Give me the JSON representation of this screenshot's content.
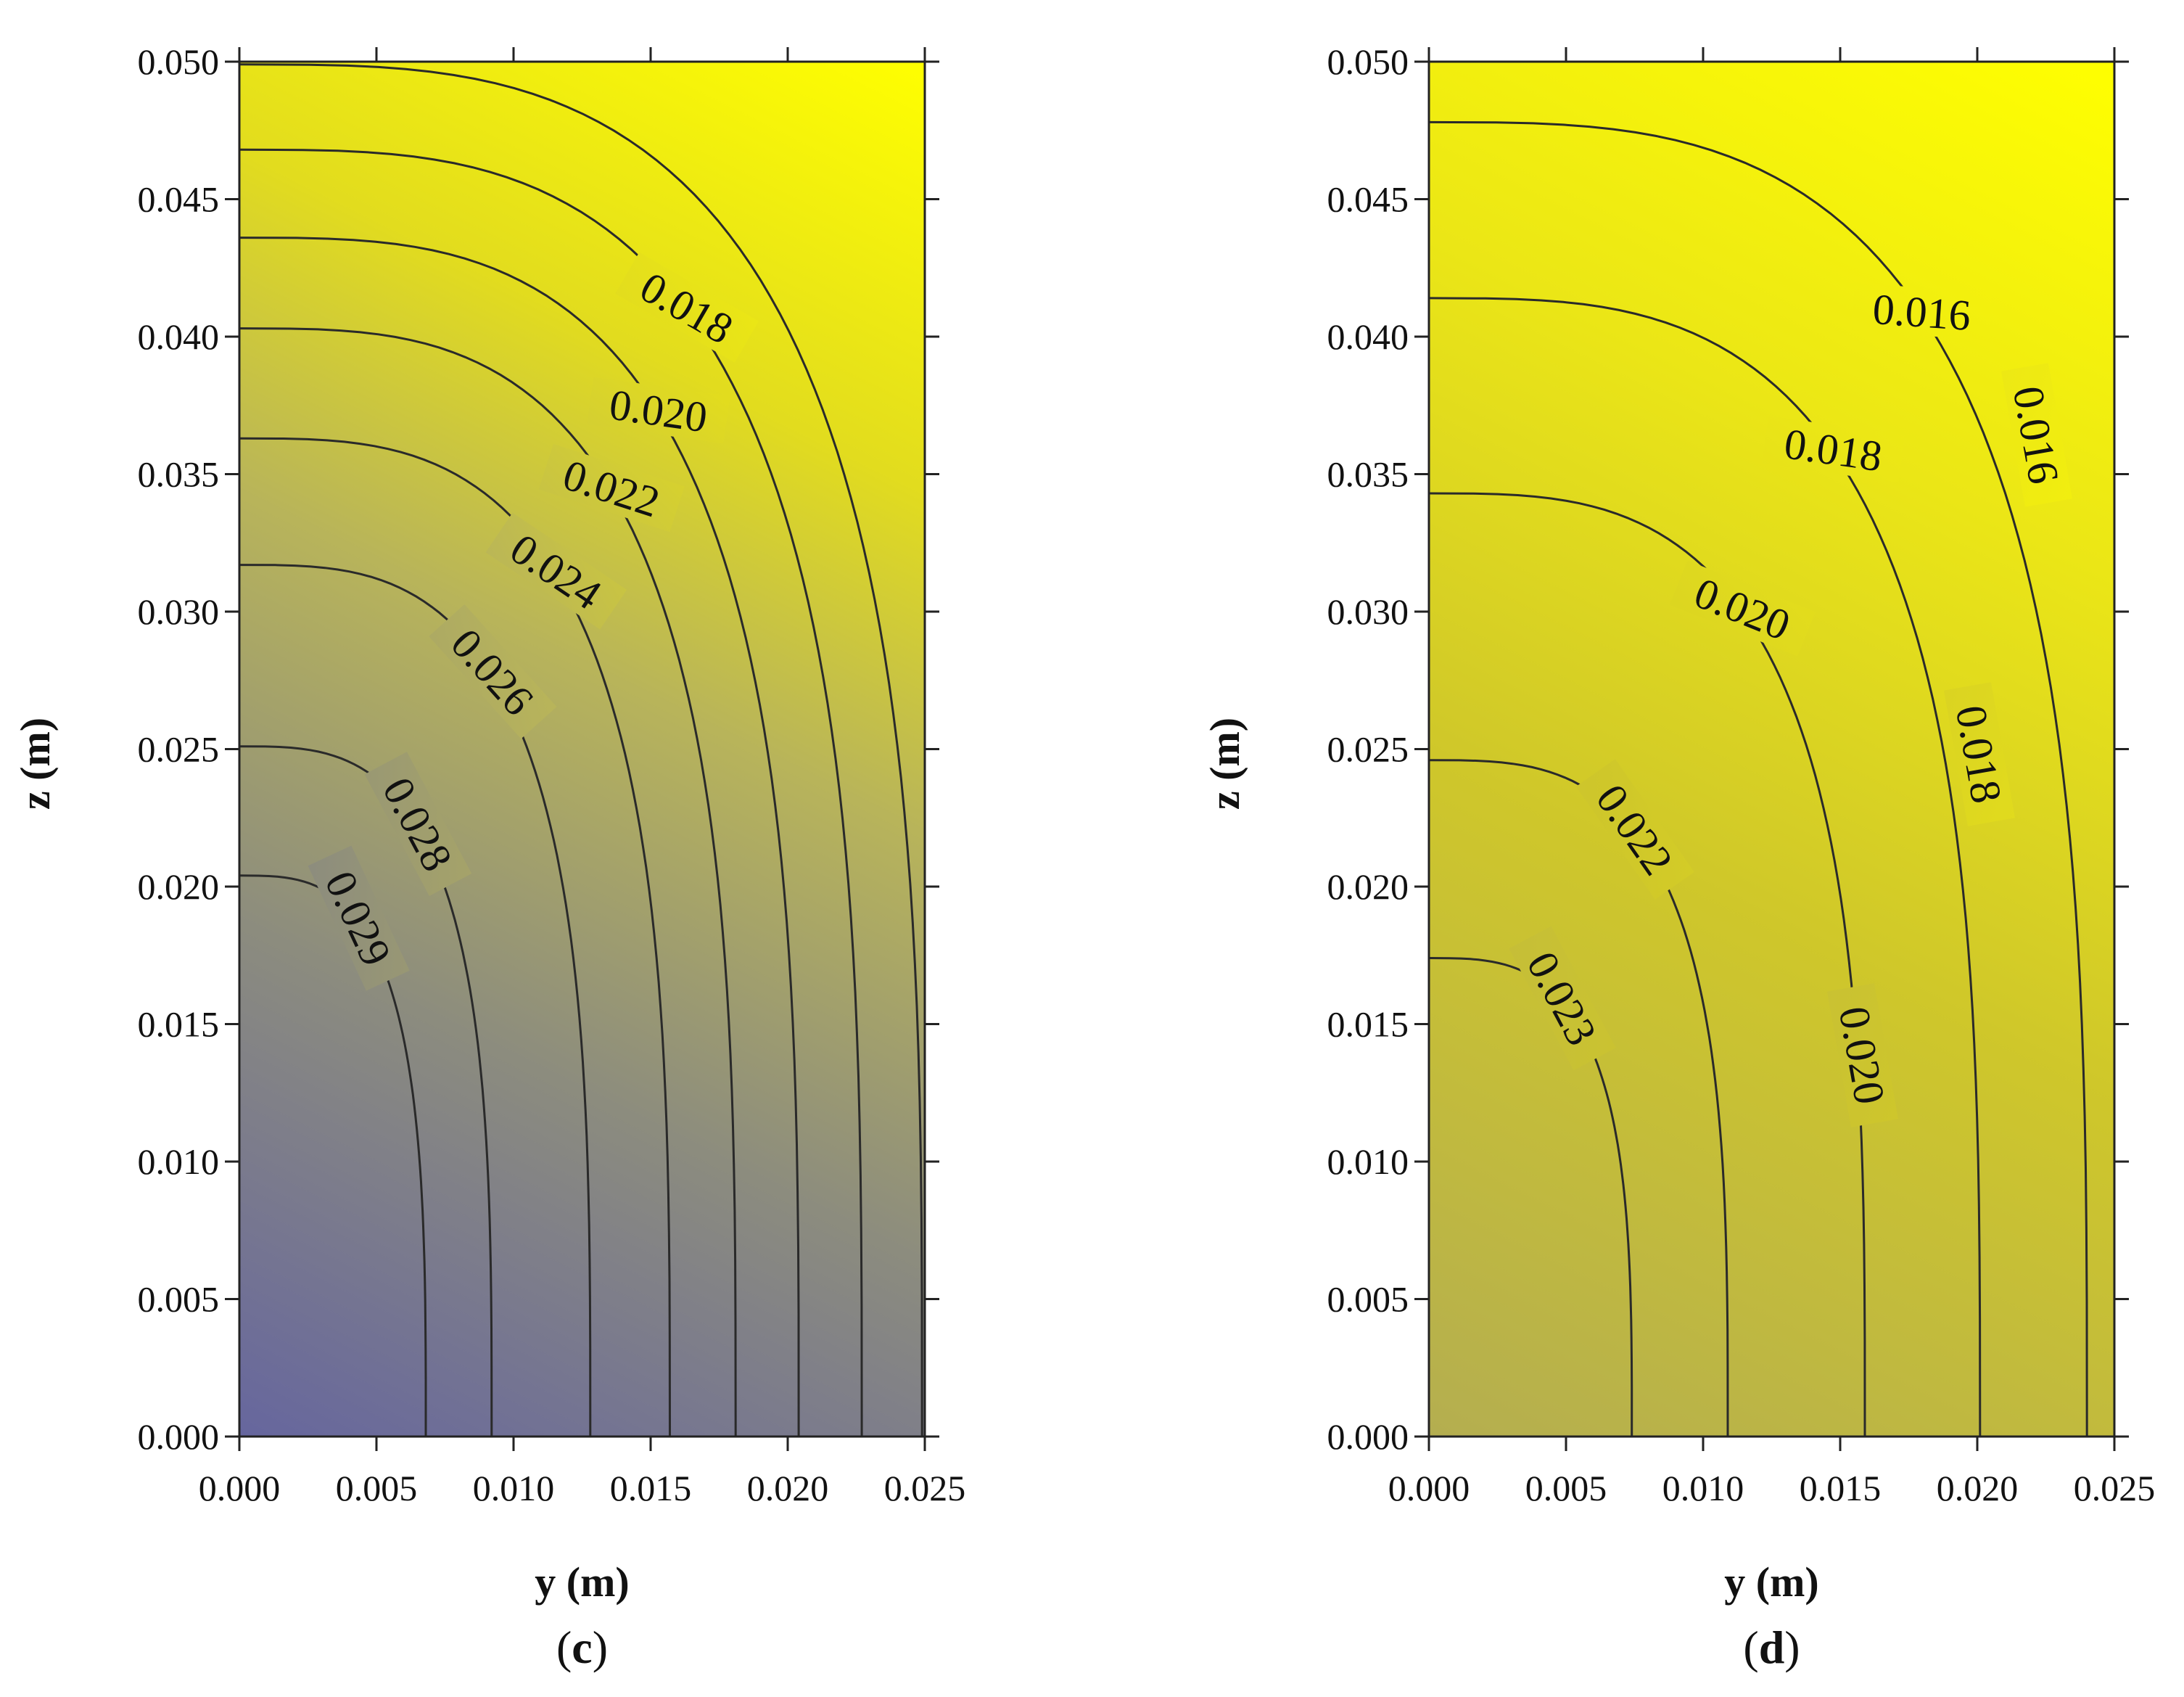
{
  "chart_data": [
    {
      "type": "heatmap",
      "subtype": "filled-contour",
      "panel": "c",
      "panel_label_paren_open": "(",
      "panel_label_letter": "c",
      "panel_label_paren_close": ")",
      "xlabel": "y (m)",
      "ylabel": "z (m)",
      "xlim": [
        0,
        0.025
      ],
      "ylim": [
        0,
        0.05
      ],
      "xticks": [
        "0.000",
        "0.005",
        "0.010",
        "0.015",
        "0.020",
        "0.025"
      ],
      "yticks": [
        "0.000",
        "0.005",
        "0.010",
        "0.015",
        "0.020",
        "0.025",
        "0.030",
        "0.035",
        "0.040",
        "0.045",
        "0.050"
      ],
      "colormap": {
        "low": "#6c6c9a",
        "mid": "#b5b15a",
        "high": "#ffff00"
      },
      "value_range": [
        0.016,
        0.03
      ],
      "contours": [
        {
          "label": "0.029",
          "value": 0.029,
          "y0": 0.0068,
          "z0": 0.0204
        },
        {
          "label": "0.028",
          "value": 0.028,
          "y0": 0.0092,
          "z0": 0.0251
        },
        {
          "label": "0.026",
          "value": 0.026,
          "y0": 0.0128,
          "z0": 0.0317
        },
        {
          "label": "0.024",
          "value": 0.024,
          "y0": 0.0157,
          "z0": 0.0363
        },
        {
          "label": "0.022",
          "value": 0.022,
          "y0": 0.0181,
          "z0": 0.0403
        },
        {
          "label": "0.020",
          "value": 0.02,
          "y0": 0.0204,
          "z0": 0.0436
        },
        {
          "label": "0.018",
          "value": 0.018,
          "y0": 0.0227,
          "z0": 0.0468
        },
        {
          "label": "",
          "value": 0.016,
          "y0": 0.0249,
          "z0": 0.0499
        }
      ]
    },
    {
      "type": "heatmap",
      "subtype": "filled-contour",
      "panel": "d",
      "panel_label_paren_open": "(",
      "panel_label_letter": "d",
      "panel_label_paren_close": ")",
      "xlabel": "y (m)",
      "ylabel": "z (m)",
      "xlim": [
        0,
        0.025
      ],
      "ylim": [
        0,
        0.05
      ],
      "xticks": [
        "0.000",
        "0.005",
        "0.010",
        "0.015",
        "0.020",
        "0.025"
      ],
      "yticks": [
        "0.000",
        "0.005",
        "0.010",
        "0.015",
        "0.020",
        "0.025",
        "0.030",
        "0.035",
        "0.040",
        "0.045",
        "0.050"
      ],
      "colormap": {
        "low": "#6c6c9a",
        "mid": "#b5b15a",
        "high": "#ffff00"
      },
      "value_range": [
        0.016,
        0.03
      ],
      "contours": [
        {
          "label": "0.023",
          "value": 0.023,
          "y0": 0.0074,
          "z0": 0.0174
        },
        {
          "label": "0.022",
          "value": 0.022,
          "y0": 0.0109,
          "z0": 0.0246
        },
        {
          "label": "0.020",
          "value": 0.02,
          "y0": 0.0159,
          "z0": 0.0343
        },
        {
          "label": "0.018",
          "value": 0.018,
          "y0": 0.0201,
          "z0": 0.0414
        },
        {
          "label": "0.016",
          "value": 0.016,
          "y0": 0.024,
          "z0": 0.0478
        }
      ],
      "side_labels": [
        "0.016",
        "0.018",
        "0.020"
      ]
    }
  ]
}
